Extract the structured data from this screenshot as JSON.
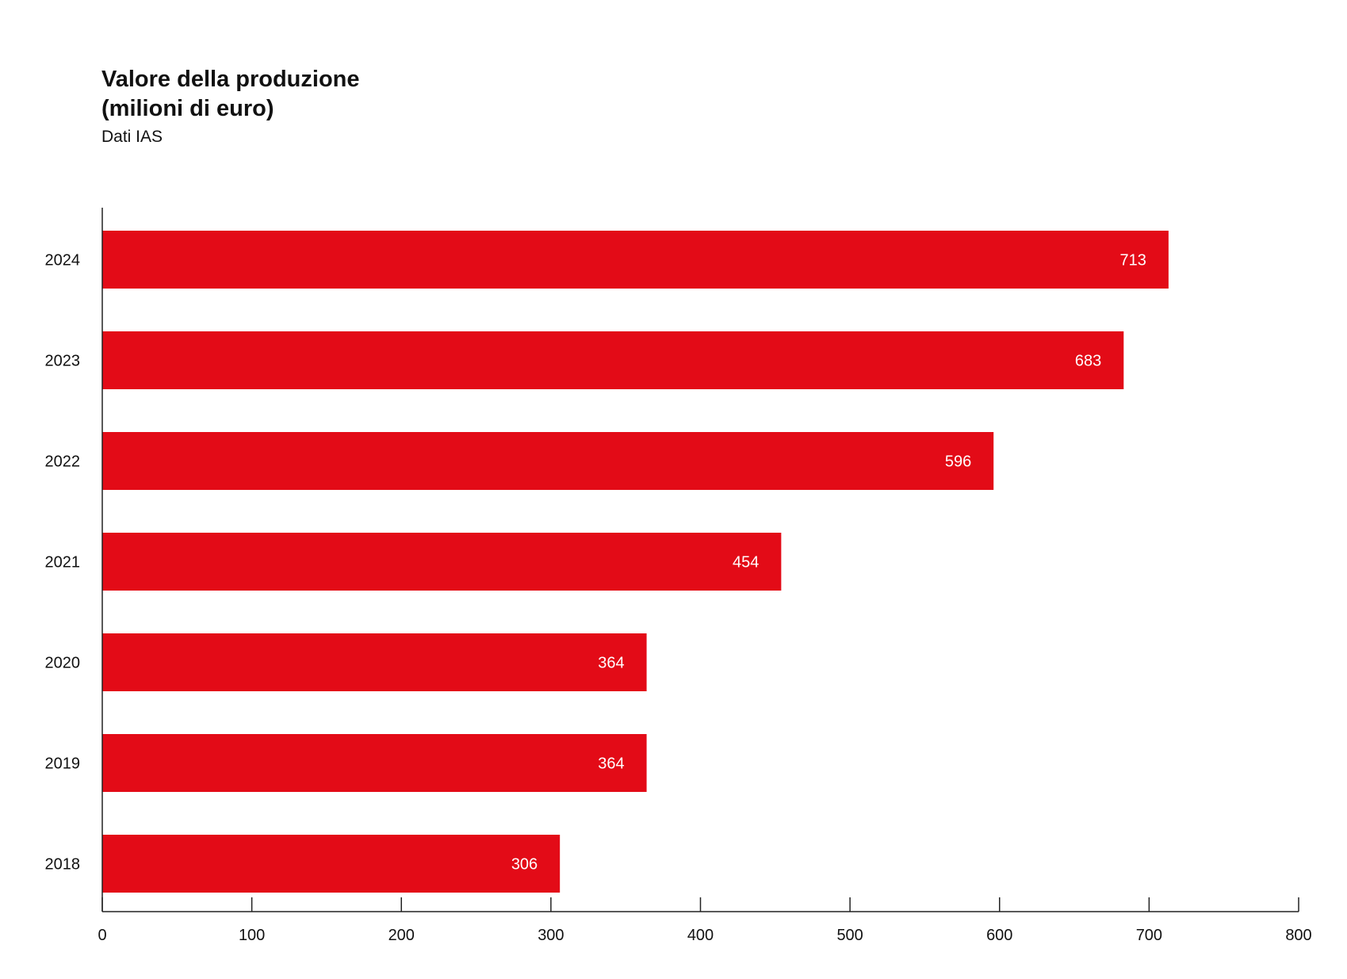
{
  "chart_data": {
    "type": "bar",
    "orientation": "horizontal",
    "title_lines": [
      "Valore della produzione",
      "(milioni di euro)"
    ],
    "subtitle": "Dati IAS",
    "categories": [
      "2024",
      "2023",
      "2022",
      "2021",
      "2020",
      "2019",
      "2018"
    ],
    "values": [
      713,
      683,
      596,
      454,
      364,
      364,
      306
    ],
    "value_labels": [
      "713",
      "683",
      "596",
      "454",
      "364",
      "364",
      "306"
    ],
    "xlim": [
      0,
      800
    ],
    "xticks": [
      0,
      100,
      200,
      300,
      400,
      500,
      600,
      700,
      800
    ],
    "xtick_labels": [
      "0",
      "100",
      "200",
      "300",
      "400",
      "500",
      "600",
      "700",
      "800"
    ],
    "grid": false,
    "legend": "none",
    "bar_color": "#e30b17",
    "axis_color": "#222222"
  }
}
